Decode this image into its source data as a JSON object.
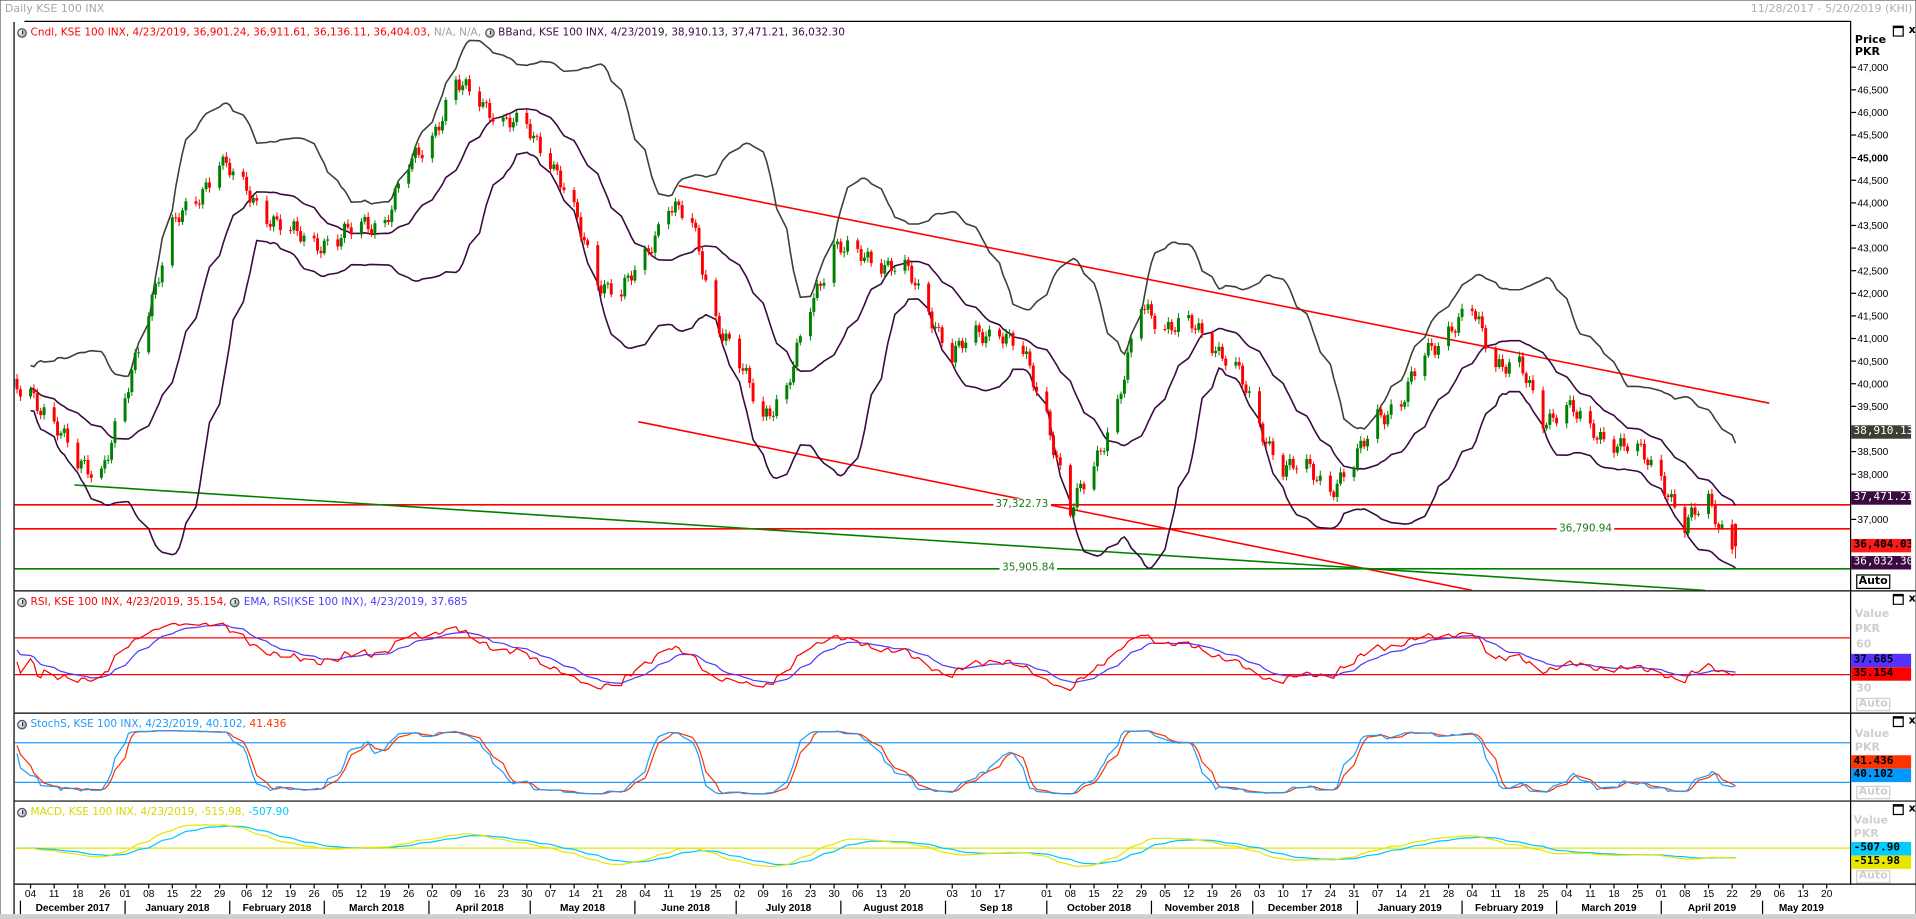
{
  "window": {
    "title": "Daily KSE 100 INX",
    "range": "11/28/2017 - 5/20/2019 (KHI)"
  },
  "controls": {
    "maximize": "□",
    "close": "x"
  },
  "price_panel": {
    "legend_candle": "Cndl, KSE 100 INX, 4/23/2019, 36,901.24, 36,911.61, 36,136.11, 36,404.03,",
    "legend_na": "N/A, N/A,",
    "legend_bband": "BBand, KSE 100 INX, 4/23/2019, 38,910.13, 37,471.21, 36,032.30",
    "axis_title": "Price",
    "axis_unit": "PKR",
    "auto": "Auto",
    "hlines": [
      {
        "label": "37,322.73",
        "value": 37322.73,
        "color": "#ff0000",
        "label_date": "2018-09-23"
      },
      {
        "label": "36,790.94",
        "value": 36790.94,
        "color": "#ff0000",
        "label_date": "2019-03-09"
      },
      {
        "label": "35,905.84",
        "value": 35905.84,
        "color": "#008000",
        "label_date": "2018-09-25"
      }
    ],
    "trendlines": [
      {
        "color": "#ff0000",
        "from": [
          "2018-06-14",
          44380
        ],
        "to": [
          "2019-05-03",
          39570
        ]
      },
      {
        "color": "#ff0000",
        "from": [
          "2018-06-02",
          39160
        ],
        "to": [
          "2019-02-04",
          35430
        ]
      },
      {
        "color": "#008000",
        "from": [
          "2017-12-17",
          37760
        ],
        "to": [
          "2019-04-14",
          35430
        ]
      }
    ]
  },
  "rsi_panel": {
    "legend_rsi": "RSI, KSE 100 INX, 4/23/2019, 35.154,",
    "legend_ema": "EMA, RSI(KSE 100 INX), 4/23/2019, 37.685",
    "axis_title": "Value",
    "axis_unit": "PKR",
    "auto": "Auto",
    "tick_labels": [
      "60",
      "30"
    ]
  },
  "stoch_panel": {
    "legend_main": "StochS, KSE 100 INX, 4/23/2019, 40.102,",
    "legend_d": "41.436",
    "axis_title": "Value",
    "axis_unit": "PKR",
    "auto": "Auto"
  },
  "macd_panel": {
    "legend_main": "MACD, KSE 100 INX, 4/23/2019, -515.98,",
    "legend_signal": "-507.90",
    "axis_title": "Value",
    "axis_unit": "PKR",
    "auto": "Auto"
  },
  "value_tags": [
    {
      "label": "38,910.13",
      "value": 38910.13,
      "panel": "price",
      "bg": "#3f3f37",
      "fg": "#ffffff"
    },
    {
      "label": "37,471.21",
      "value": 37471.21,
      "panel": "price",
      "bg": "#3a0a40",
      "fg": "#ffffff"
    },
    {
      "label": "36,404.03",
      "value": 36404.03,
      "panel": "price",
      "bg": "#ff1a1a",
      "fg": "#000000"
    },
    {
      "label": "36,032.30",
      "value": 36032.3,
      "panel": "price",
      "bg": "#3a0a40",
      "fg": "#ffffff"
    },
    {
      "label": "37.685",
      "value": 37.685,
      "panel": "rsi",
      "bg": "#5533ff",
      "fg": "#000000"
    },
    {
      "label": "35.154",
      "value": 35.154,
      "panel": "rsi",
      "bg": "#ff0000",
      "fg": "#000000"
    },
    {
      "label": "41.436",
      "value": 41.436,
      "panel": "stoch",
      "bg": "#ff3300",
      "fg": "#000000"
    },
    {
      "label": "40.102",
      "value": 40.102,
      "panel": "stoch",
      "bg": "#0099ff",
      "fg": "#000000"
    },
    {
      "label": "-507.90",
      "value": -507.9,
      "panel": "macd",
      "bg": "#00ccff",
      "fg": "#000000"
    },
    {
      "label": "-515.98",
      "value": -515.98,
      "panel": "macd",
      "bg": "#e6e600",
      "fg": "#000000"
    }
  ],
  "colors": {
    "up": "#008000",
    "down": "#ff0000",
    "bb_upper": "#3f3f37",
    "bb_mid": "#3a0a40",
    "rsi": "#ff0000",
    "rsi_ema": "#4a3cff",
    "stoch_k": "#1e9bff",
    "stoch_d": "#ff3300",
    "macd": "#e6e600",
    "macd_signal": "#00c8ff"
  },
  "chart_data": {
    "type": "candlestick",
    "title": "Daily KSE 100 INX",
    "ylabel": "Price PKR",
    "ylim": [
      35300,
      47600
    ],
    "y_ticks": [
      47000,
      46500,
      46000,
      45500,
      45000,
      44500,
      44000,
      43500,
      43000,
      42500,
      42000,
      41500,
      41000,
      40500,
      40000,
      39500,
      39000,
      38500,
      38000,
      37500,
      37000,
      36500
    ],
    "weekly_close": {
      "start": "2017-11-27",
      "step_days": 7,
      "values": [
        39840,
        39800,
        39150,
        38200,
        38100,
        39570,
        41700,
        43500,
        44000,
        45000,
        44300,
        43750,
        43350,
        43100,
        43200,
        43500,
        43600,
        44800,
        45500,
        46600,
        46300,
        45800,
        45650,
        45000,
        43750,
        42300,
        42000,
        42800,
        44000,
        43500,
        41450,
        40400,
        39300,
        39850,
        41700,
        43100,
        42800,
        42700,
        42550,
        41600,
        40650,
        41050,
        41200,
        40650,
        39300,
        37150,
        38200,
        39570,
        41700,
        41300,
        41300,
        40900,
        40400,
        39000,
        38200,
        38100,
        37700,
        38200,
        39300,
        39570,
        40650,
        41200,
        41600,
        40500,
        40400,
        39150,
        39570,
        38900,
        38750,
        38500,
        37950,
        36850,
        37400,
        36404.03
      ]
    },
    "last_candle": {
      "date": "2019-04-23",
      "open": 36901.24,
      "high": 36911.61,
      "low": 36136.11,
      "close": 36404.03
    },
    "indicators": {
      "bband": {
        "upper": 38910.13,
        "mid": 37471.21,
        "lower": 36032.3
      },
      "rsi": 35.154,
      "rsi_ema": 37.685,
      "rsi_levels": [
        70,
        30
      ],
      "stoch_k": 40.102,
      "stoch_d": 41.436,
      "stoch_levels": [
        80,
        20
      ],
      "macd": -515.98,
      "macd_signal": -507.9
    },
    "x_ticks": [
      {
        "label": "04",
        "date": "2017-12-04"
      },
      {
        "label": "11",
        "date": "2017-12-11"
      },
      {
        "label": "18",
        "date": "2017-12-18"
      },
      {
        "label": "26",
        "date": "2017-12-26"
      },
      {
        "label": "01",
        "date": "2018-01-01"
      },
      {
        "label": "08",
        "date": "2018-01-08"
      },
      {
        "label": "15",
        "date": "2018-01-15"
      },
      {
        "label": "22",
        "date": "2018-01-22"
      },
      {
        "label": "29",
        "date": "2018-01-29"
      },
      {
        "label": "06",
        "date": "2018-02-06"
      },
      {
        "label": "12",
        "date": "2018-02-12"
      },
      {
        "label": "19",
        "date": "2018-02-19"
      },
      {
        "label": "26",
        "date": "2018-02-26"
      },
      {
        "label": "05",
        "date": "2018-03-05"
      },
      {
        "label": "12",
        "date": "2018-03-12"
      },
      {
        "label": "19",
        "date": "2018-03-19"
      },
      {
        "label": "26",
        "date": "2018-03-26"
      },
      {
        "label": "02",
        "date": "2018-04-02"
      },
      {
        "label": "09",
        "date": "2018-04-09"
      },
      {
        "label": "16",
        "date": "2018-04-16"
      },
      {
        "label": "23",
        "date": "2018-04-23"
      },
      {
        "label": "30",
        "date": "2018-04-30"
      },
      {
        "label": "07",
        "date": "2018-05-07"
      },
      {
        "label": "14",
        "date": "2018-05-14"
      },
      {
        "label": "21",
        "date": "2018-05-21"
      },
      {
        "label": "28",
        "date": "2018-05-28"
      },
      {
        "label": "04",
        "date": "2018-06-04"
      },
      {
        "label": "11",
        "date": "2018-06-11"
      },
      {
        "label": "19",
        "date": "2018-06-19"
      },
      {
        "label": "25",
        "date": "2018-06-25"
      },
      {
        "label": "02",
        "date": "2018-07-02"
      },
      {
        "label": "09",
        "date": "2018-07-09"
      },
      {
        "label": "16",
        "date": "2018-07-16"
      },
      {
        "label": "23",
        "date": "2018-07-23"
      },
      {
        "label": "30",
        "date": "2018-07-30"
      },
      {
        "label": "06",
        "date": "2018-08-06"
      },
      {
        "label": "13",
        "date": "2018-08-13"
      },
      {
        "label": "20",
        "date": "2018-08-20"
      },
      {
        "label": "03",
        "date": "2018-09-03"
      },
      {
        "label": "10",
        "date": "2018-09-10"
      },
      {
        "label": "17",
        "date": "2018-09-17"
      },
      {
        "label": "01",
        "date": "2018-10-01"
      },
      {
        "label": "08",
        "date": "2018-10-08"
      },
      {
        "label": "15",
        "date": "2018-10-15"
      },
      {
        "label": "22",
        "date": "2018-10-22"
      },
      {
        "label": "29",
        "date": "2018-10-29"
      },
      {
        "label": "05",
        "date": "2018-11-05"
      },
      {
        "label": "12",
        "date": "2018-11-12"
      },
      {
        "label": "19",
        "date": "2018-11-19"
      },
      {
        "label": "26",
        "date": "2018-11-26"
      },
      {
        "label": "03",
        "date": "2018-12-03"
      },
      {
        "label": "10",
        "date": "2018-12-10"
      },
      {
        "label": "17",
        "date": "2018-12-17"
      },
      {
        "label": "24",
        "date": "2018-12-24"
      },
      {
        "label": "31",
        "date": "2018-12-31"
      },
      {
        "label": "07",
        "date": "2019-01-07"
      },
      {
        "label": "14",
        "date": "2019-01-14"
      },
      {
        "label": "21",
        "date": "2019-01-21"
      },
      {
        "label": "28",
        "date": "2019-01-28"
      },
      {
        "label": "04",
        "date": "2019-02-04"
      },
      {
        "label": "11",
        "date": "2019-02-11"
      },
      {
        "label": "18",
        "date": "2019-02-18"
      },
      {
        "label": "25",
        "date": "2019-02-25"
      },
      {
        "label": "04",
        "date": "2019-03-04"
      },
      {
        "label": "11",
        "date": "2019-03-11"
      },
      {
        "label": "18",
        "date": "2019-03-18"
      },
      {
        "label": "25",
        "date": "2019-03-25"
      },
      {
        "label": "01",
        "date": "2019-04-01"
      },
      {
        "label": "08",
        "date": "2019-04-08"
      },
      {
        "label": "15",
        "date": "2019-04-15"
      },
      {
        "label": "22",
        "date": "2019-04-22"
      },
      {
        "label": "29",
        "date": "2019-04-29"
      },
      {
        "label": "06",
        "date": "2019-05-06"
      },
      {
        "label": "13",
        "date": "2019-05-13"
      },
      {
        "label": "20",
        "date": "2019-05-20"
      }
    ],
    "x_months": [
      {
        "label": "December 2017",
        "start": "2017-12-01",
        "end": "2018-01-01"
      },
      {
        "label": "January 2018",
        "start": "2018-01-01",
        "end": "2018-02-01"
      },
      {
        "label": "February 2018",
        "start": "2018-02-01",
        "end": "2018-03-01"
      },
      {
        "label": "March 2018",
        "start": "2018-03-01",
        "end": "2018-04-01"
      },
      {
        "label": "April 2018",
        "start": "2018-04-01",
        "end": "2018-05-01"
      },
      {
        "label": "May 2018",
        "start": "2018-05-01",
        "end": "2018-06-01"
      },
      {
        "label": "June 2018",
        "start": "2018-06-01",
        "end": "2018-07-01"
      },
      {
        "label": "July 2018",
        "start": "2018-07-01",
        "end": "2018-08-01"
      },
      {
        "label": "August 2018",
        "start": "2018-08-01",
        "end": "2018-09-01"
      },
      {
        "label": "Sep 18",
        "start": "2018-09-01",
        "end": "2018-10-01"
      },
      {
        "label": "October 2018",
        "start": "2018-10-01",
        "end": "2018-11-01"
      },
      {
        "label": "November 2018",
        "start": "2018-11-01",
        "end": "2018-12-01"
      },
      {
        "label": "December 2018",
        "start": "2018-12-01",
        "end": "2019-01-01"
      },
      {
        "label": "January 2019",
        "start": "2019-01-01",
        "end": "2019-02-01"
      },
      {
        "label": "February 2019",
        "start": "2019-02-01",
        "end": "2019-03-01"
      },
      {
        "label": "March 2019",
        "start": "2019-03-01",
        "end": "2019-04-01"
      },
      {
        "label": "April 2019",
        "start": "2019-04-01",
        "end": "2019-05-01"
      },
      {
        "label": "May 2019",
        "start": "2019-05-01",
        "end": "2019-05-24"
      }
    ]
  }
}
